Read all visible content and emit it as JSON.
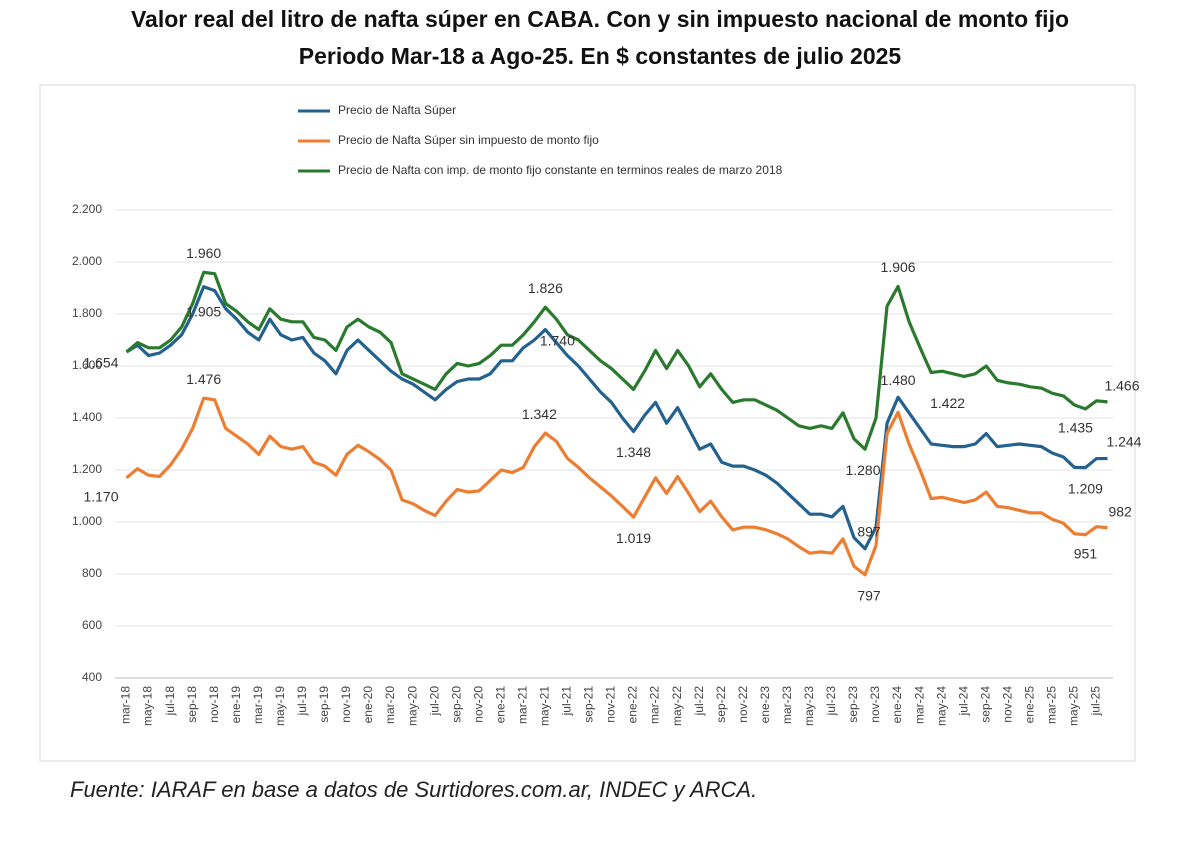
{
  "chart_data": {
    "type": "line",
    "title": "Valor real del litro de nafta súper en CABA. Con y sin impuesto nacional de monto fijo",
    "subtitle": "Periodo Mar-18 a Ago-25. En $ constantes de julio 2025",
    "source": "Fuente: IARAF en base a datos de Surtidores.com.ar, INDEC y ARCA.",
    "legend": "top-left",
    "grid": true,
    "categories": [
      "mar-18",
      null,
      "may-18",
      null,
      "jul-18",
      null,
      "sep-18",
      null,
      "nov-18",
      null,
      "ene-19",
      null,
      "mar-19",
      null,
      "may-19",
      null,
      "jul-19",
      null,
      "sep-19",
      null,
      "nov-19",
      null,
      "ene-20",
      null,
      "mar-20",
      null,
      "may-20",
      null,
      "jul-20",
      null,
      "sep-20",
      null,
      "nov-20",
      null,
      "ene-21",
      null,
      "mar-21",
      null,
      "may-21",
      null,
      "jul-21",
      null,
      "sep-21",
      null,
      "nov-21",
      null,
      "ene-22",
      null,
      "mar-22",
      null,
      "may-22",
      null,
      "jul-22",
      null,
      "sep-22",
      null,
      "nov-22",
      null,
      "ene-23",
      null,
      "mar-23",
      null,
      "may-23",
      null,
      "jul-23",
      null,
      "sep-23",
      null,
      "nov-23",
      null,
      "ene-24",
      null,
      "mar-24",
      null,
      "may-24",
      null,
      "jul-24",
      null,
      "sep-24",
      null,
      "nov-24",
      null,
      "ene-25",
      null,
      "mar-25",
      null,
      "may-25",
      null,
      "jul-25",
      null
    ],
    "ylim": [
      400,
      2200
    ],
    "yticks": [
      400,
      600,
      800,
      {
        "value": 1000,
        "label": "1.000"
      },
      {
        "value": 1200,
        "label": "1.200"
      },
      {
        "value": 1400,
        "label": "1.400"
      },
      {
        "value": 1600,
        "label": "1.600"
      },
      {
        "value": 1800,
        "label": "1.800"
      },
      {
        "value": 2000,
        "label": "2.000"
      },
      {
        "value": 2200,
        "label": "2.200"
      }
    ],
    "series": [
      {
        "name": "Precio de Nafta Súper",
        "color": "#23618e",
        "values": [
          1654,
          1680,
          1640,
          1650,
          1680,
          1720,
          1800,
          1905,
          1890,
          1820,
          1780,
          1730,
          1700,
          1780,
          1720,
          1700,
          1710,
          1650,
          1620,
          1570,
          1660,
          1700,
          1660,
          1620,
          1580,
          1550,
          1530,
          1500,
          1470,
          1510,
          1540,
          1550,
          1550,
          1570,
          1620,
          1620,
          1670,
          1700,
          1740,
          1690,
          1640,
          1600,
          1550,
          1500,
          1460,
          1400,
          1348,
          1410,
          1460,
          1380,
          1440,
          1360,
          1280,
          1300,
          1230,
          1215,
          1215,
          1200,
          1180,
          1150,
          1110,
          1070,
          1030,
          1030,
          1020,
          1060,
          940,
          897,
          980,
          1380,
          1480,
          1420,
          1360,
          1300,
          1295,
          1290,
          1290,
          1300,
          1340,
          1290,
          1295,
          1300,
          1295,
          1290,
          1265,
          1250,
          1210,
          1209,
          1244,
          1244
        ],
        "value_labels": [
          "1.654",
          null,
          null,
          null,
          null,
          null,
          null,
          "1.905",
          null,
          null,
          null,
          null,
          null,
          null,
          null,
          null,
          null,
          null,
          null,
          null,
          null,
          null,
          null,
          null,
          null,
          null,
          null,
          null,
          null,
          null,
          null,
          null,
          null,
          null,
          null,
          null,
          null,
          null,
          "1.740",
          null,
          null,
          null,
          null,
          null,
          null,
          null,
          "1.348",
          null,
          null,
          null,
          null,
          null,
          null,
          null,
          null,
          null,
          null,
          null,
          null,
          null,
          null,
          null,
          null,
          null,
          null,
          null,
          null,
          "897",
          null,
          null,
          "1.480",
          null,
          null,
          null,
          null,
          null,
          null,
          null,
          null,
          null,
          null,
          null,
          null,
          null,
          null,
          null,
          null,
          "1.209",
          "1.244",
          null
        ]
      },
      {
        "name": "Precio de Nafta Súper sin impuesto de monto fijo",
        "color": "#ed7d31",
        "values": [
          1170,
          1205,
          1180,
          1175,
          1220,
          1280,
          1360,
          1476,
          1470,
          1360,
          1330,
          1300,
          1260,
          1330,
          1290,
          1280,
          1290,
          1230,
          1215,
          1180,
          1260,
          1295,
          1270,
          1240,
          1200,
          1085,
          1070,
          1045,
          1025,
          1080,
          1125,
          1115,
          1120,
          1160,
          1200,
          1190,
          1210,
          1290,
          1342,
          1310,
          1245,
          1210,
          1170,
          1135,
          1100,
          1060,
          1019,
          1095,
          1170,
          1110,
          1175,
          1110,
          1040,
          1080,
          1020,
          970,
          980,
          980,
          970,
          955,
          935,
          905,
          880,
          885,
          880,
          935,
          830,
          797,
          910,
          1340,
          1422,
          1300,
          1200,
          1090,
          1095,
          1085,
          1075,
          1085,
          1115,
          1060,
          1055,
          1045,
          1035,
          1035,
          1010,
          995,
          955,
          951,
          982,
          978
        ],
        "value_labels": [
          "1.170",
          null,
          null,
          null,
          null,
          null,
          null,
          "1.476",
          null,
          null,
          null,
          null,
          null,
          null,
          null,
          null,
          null,
          null,
          null,
          null,
          null,
          null,
          null,
          null,
          null,
          null,
          null,
          null,
          null,
          null,
          null,
          null,
          null,
          null,
          null,
          null,
          null,
          null,
          "1.342",
          null,
          null,
          null,
          null,
          null,
          null,
          null,
          "1.019",
          null,
          null,
          null,
          null,
          null,
          null,
          null,
          null,
          null,
          null,
          null,
          null,
          null,
          null,
          null,
          null,
          null,
          null,
          null,
          null,
          "797",
          null,
          null,
          "1.422",
          null,
          null,
          null,
          null,
          null,
          null,
          null,
          null,
          null,
          null,
          null,
          null,
          null,
          null,
          null,
          null,
          "951",
          "982",
          null
        ]
      },
      {
        "name": "Precio de Nafta con imp. de monto fijo constante en terminos reales de marzo 2018",
        "color": "#2a7a2e",
        "values": [
          1654,
          1690,
          1670,
          1670,
          1700,
          1750,
          1840,
          1960,
          1955,
          1840,
          1810,
          1770,
          1740,
          1820,
          1780,
          1770,
          1770,
          1710,
          1700,
          1660,
          1750,
          1780,
          1750,
          1730,
          1690,
          1570,
          1550,
          1530,
          1510,
          1570,
          1610,
          1600,
          1610,
          1640,
          1680,
          1680,
          1720,
          1770,
          1826,
          1780,
          1720,
          1700,
          1660,
          1620,
          1590,
          1550,
          1510,
          1580,
          1660,
          1590,
          1660,
          1600,
          1520,
          1570,
          1510,
          1460,
          1470,
          1470,
          1450,
          1430,
          1400,
          1370,
          1360,
          1370,
          1360,
          1420,
          1320,
          1280,
          1400,
          1830,
          1906,
          1770,
          1670,
          1575,
          1580,
          1570,
          1560,
          1570,
          1600,
          1545,
          1535,
          1530,
          1520,
          1515,
          1495,
          1485,
          1450,
          1435,
          1466,
          1462
        ],
        "value_labels": [
          null,
          null,
          null,
          null,
          null,
          null,
          null,
          "1.960",
          null,
          null,
          null,
          null,
          null,
          null,
          null,
          null,
          null,
          null,
          null,
          null,
          null,
          null,
          null,
          null,
          null,
          null,
          null,
          null,
          null,
          null,
          null,
          null,
          null,
          null,
          null,
          null,
          null,
          null,
          "1.826",
          null,
          null,
          null,
          null,
          null,
          null,
          null,
          null,
          null,
          null,
          null,
          null,
          null,
          null,
          null,
          null,
          null,
          null,
          null,
          null,
          null,
          null,
          null,
          null,
          null,
          null,
          null,
          null,
          "1.280",
          null,
          null,
          "1.906",
          null,
          null,
          null,
          null,
          null,
          null,
          null,
          null,
          null,
          null,
          null,
          null,
          null,
          null,
          null,
          null,
          "1.435",
          "1.466",
          null
        ]
      }
    ]
  }
}
